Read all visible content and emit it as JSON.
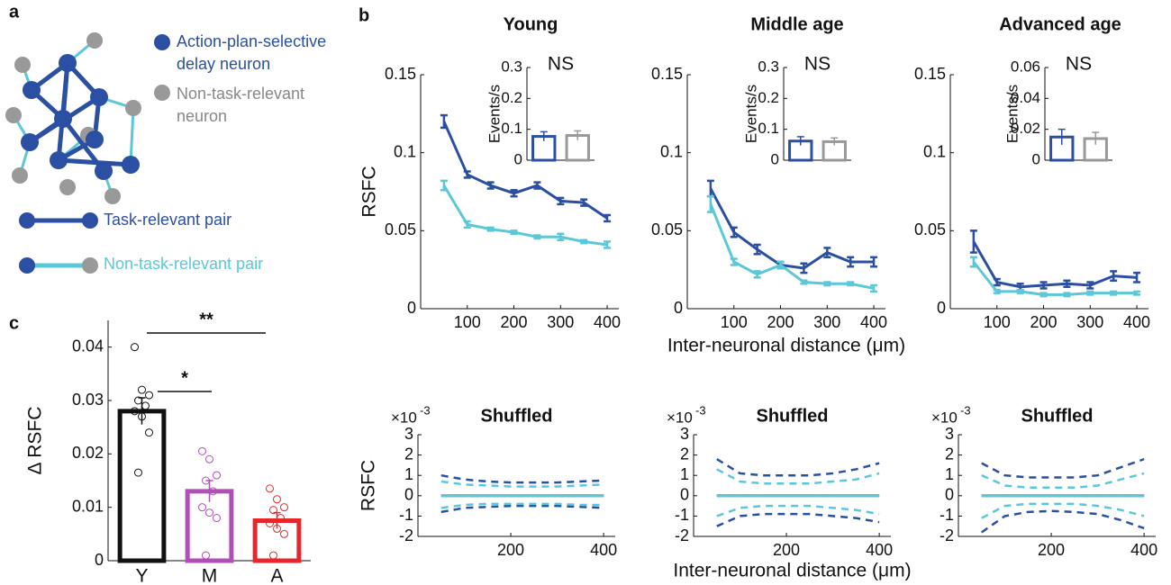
{
  "panel_labels": [
    "a",
    "b",
    "c"
  ],
  "diagram": {
    "neuron_legend": [
      "Action-plan-selective",
      "delay neuron",
      "Non-task-relevant",
      "neuron"
    ],
    "pair_legend": [
      "Task-relevant pair",
      "Non-task-relevant pair"
    ]
  },
  "chart_data": [
    {
      "type": "line",
      "title": "Young",
      "ylabel": "RSFC",
      "x": [
        50,
        100,
        150,
        200,
        250,
        300,
        350,
        400
      ],
      "xlim": [
        0,
        425
      ],
      "xticks": [
        100,
        200,
        300,
        400
      ],
      "ylim": [
        0,
        0.15
      ],
      "yticks": [
        0,
        0.05,
        0.1,
        0.15
      ],
      "series": [
        {
          "color": "#2b4fa2",
          "values": [
            0.12,
            0.086,
            0.079,
            0.074,
            0.079,
            0.069,
            0.068,
            0.058
          ],
          "errors": [
            0.004,
            0.002,
            0.002,
            0.002,
            0.002,
            0.002,
            0.002,
            0.002
          ]
        },
        {
          "color": "#5bc8d8",
          "values": [
            0.079,
            0.054,
            0.051,
            0.049,
            0.046,
            0.046,
            0.043,
            0.041
          ],
          "errors": [
            0.003,
            0.002,
            0.001,
            0.001,
            0.001,
            0.002,
            0.001,
            0.002
          ]
        }
      ]
    },
    {
      "type": "line",
      "title": "Middle age",
      "xlabel": "Inter-neuronal distance (μm)",
      "x": [
        50,
        100,
        150,
        200,
        250,
        300,
        350,
        400
      ],
      "xlim": [
        0,
        425
      ],
      "xticks": [
        100,
        200,
        300,
        400
      ],
      "ylim": [
        0,
        0.15
      ],
      "yticks": [
        0,
        0.05,
        0.1,
        0.15
      ],
      "series": [
        {
          "color": "#2b4fa2",
          "values": [
            0.077,
            0.049,
            0.038,
            0.028,
            0.026,
            0.036,
            0.03,
            0.03
          ],
          "errors": [
            0.005,
            0.003,
            0.003,
            0.002,
            0.003,
            0.003,
            0.003,
            0.003
          ]
        },
        {
          "color": "#5bc8d8",
          "values": [
            0.067,
            0.03,
            0.022,
            0.028,
            0.017,
            0.016,
            0.016,
            0.013
          ],
          "errors": [
            0.005,
            0.002,
            0.002,
            0.002,
            0.001,
            0.001,
            0.001,
            0.002
          ]
        }
      ]
    },
    {
      "type": "line",
      "title": "Advanced age",
      "x": [
        50,
        100,
        150,
        200,
        250,
        300,
        350,
        400
      ],
      "xlim": [
        0,
        425
      ],
      "xticks": [
        100,
        200,
        300,
        400
      ],
      "ylim": [
        0,
        0.15
      ],
      "yticks": [
        0,
        0.05,
        0.1,
        0.15
      ],
      "series": [
        {
          "color": "#2b4fa2",
          "values": [
            0.043,
            0.017,
            0.014,
            0.015,
            0.016,
            0.015,
            0.021,
            0.02
          ],
          "errors": [
            0.007,
            0.002,
            0.002,
            0.002,
            0.002,
            0.002,
            0.003,
            0.003
          ]
        },
        {
          "color": "#5bc8d8",
          "values": [
            0.03,
            0.011,
            0.011,
            0.009,
            0.009,
            0.01,
            0.01,
            0.01
          ],
          "errors": [
            0.003,
            0.001,
            0.001,
            0.001,
            0.001,
            0.001,
            0.001,
            0.001
          ]
        }
      ]
    },
    {
      "type": "bar",
      "title": "NS",
      "ylabel": "Events/s",
      "categories": [
        null,
        null
      ],
      "colors": [
        "#2b4fa2",
        "#999999"
      ],
      "values": [
        0.077,
        0.08
      ],
      "errors": [
        0.015,
        0.015
      ],
      "ylim": [
        0,
        0.3
      ],
      "yticks": [
        0,
        0.1,
        0.2,
        0.3
      ]
    },
    {
      "type": "bar",
      "title": "NS",
      "ylabel": "Events/s",
      "categories": [
        null,
        null
      ],
      "colors": [
        "#2b4fa2",
        "#999999"
      ],
      "values": [
        0.062,
        0.06
      ],
      "errors": [
        0.014,
        0.012
      ],
      "ylim": [
        0,
        0.3
      ],
      "yticks": [
        0,
        0.1,
        0.2,
        0.3
      ]
    },
    {
      "type": "bar",
      "title": "NS",
      "ylabel": "Events/s",
      "categories": [
        null,
        null
      ],
      "colors": [
        "#2b4fa2",
        "#999999"
      ],
      "values": [
        0.015,
        0.014
      ],
      "errors": [
        0.005,
        0.004
      ],
      "ylim": [
        0,
        0.06
      ],
      "yticks": [
        0,
        0.02,
        0.04,
        0.06
      ]
    },
    {
      "type": "line",
      "title": "Shuffled",
      "ylabel": "RSFC",
      "y_exponent_base": "×10",
      "y_exponent": "-3",
      "x": [
        50,
        100,
        150,
        200,
        250,
        300,
        350,
        400
      ],
      "xlim": [
        0,
        425
      ],
      "xticks": [
        200,
        400
      ],
      "ylim": [
        -2,
        3
      ],
      "yticks": [
        -2,
        -1,
        0,
        1,
        2,
        3
      ],
      "series": [
        {
          "color": "#2b4fa2",
          "dashed": true,
          "values": [
            1.0,
            0.8,
            0.7,
            0.65,
            0.65,
            0.65,
            0.7,
            0.75
          ]
        },
        {
          "color": "#2b4fa2",
          "dashed": true,
          "values": [
            -0.8,
            -0.6,
            -0.55,
            -0.5,
            -0.5,
            -0.5,
            -0.55,
            -0.6
          ]
        },
        {
          "color": "#5bc8d8",
          "dashed": true,
          "values": [
            0.7,
            0.55,
            0.5,
            0.45,
            0.45,
            0.45,
            0.5,
            0.55
          ]
        },
        {
          "color": "#5bc8d8",
          "dashed": true,
          "values": [
            -0.6,
            -0.45,
            -0.4,
            -0.4,
            -0.4,
            -0.4,
            -0.45,
            -0.45
          ]
        },
        {
          "color": "#2b4fa2",
          "values": [
            0,
            0,
            0,
            0,
            0,
            0,
            0,
            0
          ]
        },
        {
          "color": "#5bc8d8",
          "values": [
            0,
            0,
            0,
            0,
            0,
            0,
            0,
            0
          ]
        }
      ]
    },
    {
      "type": "line",
      "title": "Shuffled",
      "xlabel": "Inter-neuronal distance (μm)",
      "y_exponent_base": "×10",
      "y_exponent": "-3",
      "x": [
        50,
        100,
        150,
        200,
        250,
        300,
        350,
        400
      ],
      "xlim": [
        0,
        425
      ],
      "xticks": [
        200,
        400
      ],
      "ylim": [
        -2,
        3
      ],
      "yticks": [
        -2,
        -1,
        0,
        1,
        2,
        3
      ],
      "series": [
        {
          "color": "#2b4fa2",
          "dashed": true,
          "values": [
            1.8,
            1.1,
            1.0,
            1.0,
            1.0,
            1.1,
            1.3,
            1.6
          ]
        },
        {
          "color": "#2b4fa2",
          "dashed": true,
          "values": [
            -1.5,
            -1.0,
            -0.9,
            -0.9,
            -0.9,
            -1.0,
            -1.1,
            -1.3
          ]
        },
        {
          "color": "#5bc8d8",
          "dashed": true,
          "values": [
            1.3,
            0.7,
            0.6,
            0.6,
            0.6,
            0.7,
            0.8,
            1.1
          ]
        },
        {
          "color": "#5bc8d8",
          "dashed": true,
          "values": [
            -1.0,
            -0.6,
            -0.5,
            -0.5,
            -0.5,
            -0.6,
            -0.7,
            -0.9
          ]
        },
        {
          "color": "#2b4fa2",
          "values": [
            0,
            0,
            0,
            0,
            0,
            0,
            0,
            0
          ]
        },
        {
          "color": "#5bc8d8",
          "values": [
            0,
            0,
            0,
            0,
            0,
            0,
            0,
            0
          ]
        }
      ]
    },
    {
      "type": "line",
      "title": "Shuffled",
      "y_exponent_base": "×10",
      "y_exponent": "-3",
      "x": [
        50,
        100,
        150,
        200,
        250,
        300,
        350,
        400
      ],
      "xlim": [
        0,
        425
      ],
      "xticks": [
        200,
        400
      ],
      "ylim": [
        -2,
        3
      ],
      "yticks": [
        -2,
        -1,
        0,
        1,
        2,
        3
      ],
      "series": [
        {
          "color": "#2b4fa2",
          "dashed": true,
          "values": [
            1.6,
            1.0,
            0.9,
            0.9,
            0.9,
            1.0,
            1.4,
            1.8
          ]
        },
        {
          "color": "#2b4fa2",
          "dashed": true,
          "values": [
            -1.8,
            -1.0,
            -0.8,
            -0.75,
            -0.8,
            -0.9,
            -1.2,
            -1.6
          ]
        },
        {
          "color": "#5bc8d8",
          "dashed": true,
          "values": [
            1.0,
            0.5,
            0.4,
            0.4,
            0.4,
            0.5,
            0.8,
            1.1
          ]
        },
        {
          "color": "#5bc8d8",
          "dashed": true,
          "values": [
            -1.1,
            -0.5,
            -0.4,
            -0.4,
            -0.4,
            -0.5,
            -0.7,
            -1.0
          ]
        },
        {
          "color": "#2b4fa2",
          "values": [
            0,
            0,
            0,
            0,
            0,
            0,
            0,
            0
          ]
        },
        {
          "color": "#5bc8d8",
          "values": [
            0,
            0,
            0,
            0,
            0,
            0,
            0,
            0
          ]
        }
      ]
    },
    {
      "type": "bar",
      "ylabel": "Δ RSFC",
      "categories": [
        "Y",
        "M",
        "A"
      ],
      "colors": [
        "#111111",
        "#b04fb5",
        "#e8262a"
      ],
      "values": [
        0.028,
        0.013,
        0.0075
      ],
      "errors": [
        0.0025,
        0.002,
        0.0015
      ],
      "ylim": [
        0,
        0.045
      ],
      "yticks": [
        0,
        0.01,
        0.02,
        0.03,
        0.04
      ],
      "points": [
        [
          0.04,
          0.032,
          0.031,
          0.03,
          0.029,
          0.028,
          0.027,
          0.024,
          0.0165
        ],
        [
          0.0205,
          0.019,
          0.016,
          0.015,
          0.013,
          0.01,
          0.009,
          0.008,
          0.001
        ],
        [
          0.0135,
          0.0115,
          0.01,
          0.0095,
          0.008,
          0.007,
          0.006,
          0.005,
          0.001
        ]
      ],
      "annotations": [
        "**",
        "*"
      ]
    }
  ]
}
